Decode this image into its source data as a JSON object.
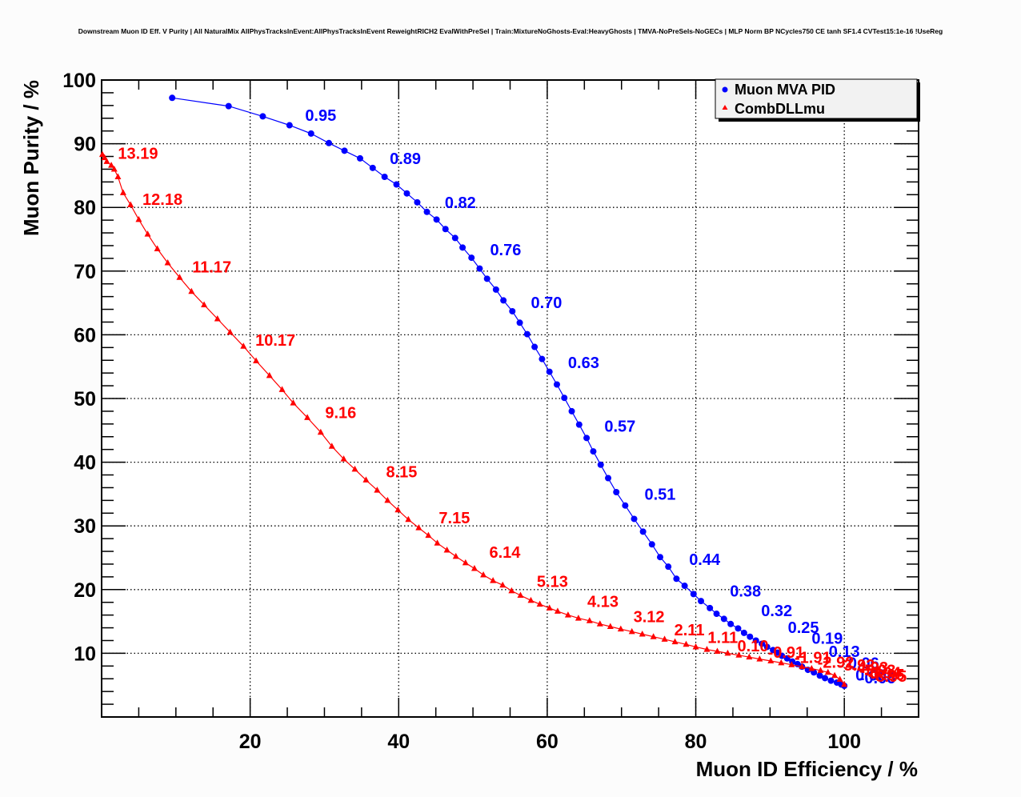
{
  "chart_data": {
    "type": "line",
    "title": "Downstream Muon ID Eff. V Purity | All NaturalMix AllPhysTracksInEvent:AllPhysTracksInEvent ReweightRICH2 EvalWithPreSel | Train:MixtureNoGhosts-Eval:HeavyGhosts | TMVA-NoPreSels-NoGECs | MLP Norm BP NCycles750 CE tanh SF1.4 CVTest15:1e-16 !UseReg",
    "xlabel": "Muon ID Efficiency / %",
    "ylabel": "Muon Purity / %",
    "xlim": [
      0,
      110
    ],
    "ylim": [
      0,
      100
    ],
    "xticks": [
      "20",
      "40",
      "60",
      "80",
      "100"
    ],
    "yticks": [
      "10",
      "20",
      "30",
      "40",
      "50",
      "60",
      "70",
      "80",
      "90",
      "100"
    ],
    "grid": true,
    "legend_position": "top-right",
    "series": [
      {
        "name": "Muon MVA PID",
        "color": "#0000ff",
        "marker": "circle",
        "x": [
          9.5,
          17.1,
          21.7,
          25.3,
          28.2,
          30.6,
          32.7,
          34.8,
          36.5,
          38.1,
          39.7,
          41.1,
          42.5,
          43.8,
          45.1,
          46.3,
          47.6,
          48.6,
          49.8,
          50.9,
          51.9,
          53.1,
          54.1,
          55.3,
          56.3,
          57.3,
          58.3,
          59.3,
          60.3,
          61.3,
          62.3,
          63.3,
          64.3,
          65.3,
          66.2,
          67.2,
          68.2,
          69.3,
          70.5,
          71.7,
          72.9,
          74.1,
          75.2,
          76.3,
          77.4,
          78.5,
          79.7,
          80.7,
          81.9,
          82.8,
          83.8,
          84.7,
          85.7,
          86.5,
          87.3,
          88.1,
          88.9,
          89.6,
          90.4,
          91.0,
          91.6,
          92.3,
          93.0,
          93.7,
          94.3,
          95.1,
          95.9,
          96.7,
          97.4,
          98.2,
          99.0,
          99.6,
          100.0
        ],
        "y": [
          97.2,
          95.9,
          94.3,
          92.9,
          91.6,
          90.1,
          88.9,
          87.7,
          86.2,
          84.8,
          83.6,
          82.2,
          80.8,
          79.3,
          78.1,
          76.6,
          75.2,
          73.7,
          72.1,
          70.4,
          68.8,
          67.1,
          65.4,
          63.7,
          61.9,
          60.1,
          58.1,
          56.2,
          54.2,
          52.2,
          50.1,
          48.0,
          45.9,
          43.8,
          41.7,
          39.6,
          37.5,
          35.3,
          33.2,
          31.1,
          29.1,
          27.1,
          25.1,
          23.6,
          21.7,
          20.6,
          19.3,
          18.2,
          17.1,
          16.2,
          15.4,
          14.6,
          13.9,
          13.2,
          12.6,
          12.0,
          11.5,
          11.0,
          10.5,
          10.1,
          9.6,
          9.2,
          8.7,
          8.3,
          7.9,
          7.4,
          7.0,
          6.5,
          6.1,
          5.7,
          5.4,
          5.1,
          4.9
        ],
        "labels": [
          {
            "text": "0.95",
            "x": 27.4,
            "y": 93.6
          },
          {
            "text": "0.89",
            "x": 38.8,
            "y": 86.8
          },
          {
            "text": "0.82",
            "x": 46.2,
            "y": 79.9
          },
          {
            "text": "0.76",
            "x": 52.3,
            "y": 72.5
          },
          {
            "text": "0.70",
            "x": 57.8,
            "y": 64.2
          },
          {
            "text": "0.63",
            "x": 62.8,
            "y": 54.8
          },
          {
            "text": "0.57",
            "x": 67.7,
            "y": 44.8
          },
          {
            "text": "0.51",
            "x": 73.1,
            "y": 34.1
          },
          {
            "text": "0.44",
            "x": 79.1,
            "y": 23.9
          },
          {
            "text": "0.38",
            "x": 84.6,
            "y": 18.9
          },
          {
            "text": "0.32",
            "x": 88.8,
            "y": 15.8
          },
          {
            "text": "0.25",
            "x": 92.4,
            "y": 13.2
          },
          {
            "text": "0.19",
            "x": 95.6,
            "y": 11.5
          },
          {
            "text": "0.13",
            "x": 97.9,
            "y": 9.4
          },
          {
            "text": "0.06",
            "x": 100.5,
            "y": 7.6
          },
          {
            "text": "0.00",
            "x": 101.5,
            "y": 5.7
          },
          {
            "text": "-0.06",
            "x": 102.0,
            "y": 5.3
          }
        ]
      },
      {
        "name": "CombDLLmu",
        "color": "#ff0000",
        "marker": "triangle",
        "x": [
          0.1,
          0.4,
          0.7,
          1.3,
          1.7,
          2.2,
          2.9,
          3.9,
          5.0,
          6.2,
          7.5,
          8.9,
          10.5,
          12.1,
          13.8,
          15.6,
          17.3,
          19.1,
          20.8,
          22.6,
          24.3,
          25.8,
          27.7,
          29.5,
          31.0,
          32.6,
          34.1,
          35.6,
          37.1,
          38.5,
          39.9,
          41.3,
          42.7,
          44.0,
          45.2,
          46.5,
          47.7,
          49.0,
          50.2,
          51.4,
          52.7,
          54.0,
          55.2,
          56.4,
          57.8,
          59.0,
          60.3,
          61.4,
          62.8,
          64.2,
          65.7,
          67.1,
          68.5,
          69.9,
          71.4,
          72.8,
          74.3,
          75.8,
          77.2,
          78.7,
          80.0,
          81.5,
          82.9,
          84.3,
          85.8,
          87.2,
          88.6,
          90.1,
          91.5,
          92.9,
          94.3,
          95.6,
          96.8,
          97.8,
          98.7,
          99.4,
          100.0
        ],
        "y": [
          88.3,
          87.8,
          87.2,
          86.6,
          86.0,
          84.8,
          82.3,
          80.4,
          78.1,
          75.8,
          73.5,
          71.3,
          69.0,
          66.8,
          64.7,
          62.5,
          60.4,
          58.2,
          55.9,
          53.6,
          51.4,
          49.3,
          47.0,
          44.7,
          42.5,
          40.5,
          38.9,
          37.2,
          35.6,
          34.0,
          32.5,
          31.0,
          29.7,
          28.5,
          27.3,
          26.2,
          25.2,
          24.2,
          23.3,
          22.3,
          21.4,
          20.7,
          19.8,
          19.1,
          18.3,
          17.7,
          17.1,
          16.6,
          16.0,
          15.5,
          15.1,
          14.6,
          14.2,
          13.8,
          13.4,
          13.0,
          12.6,
          12.2,
          11.8,
          11.4,
          11.0,
          10.6,
          10.3,
          10.0,
          9.7,
          9.4,
          9.1,
          8.8,
          8.5,
          8.2,
          7.9,
          7.6,
          7.3,
          7.0,
          6.5,
          5.9,
          5.1
        ],
        "labels": [
          {
            "text": "13.19",
            "x": 2.2,
            "y": 87.6
          },
          {
            "text": "12.18",
            "x": 5.5,
            "y": 80.4
          },
          {
            "text": "11.17",
            "x": 12.2,
            "y": 69.8
          },
          {
            "text": "10.17",
            "x": 20.7,
            "y": 58.3
          },
          {
            "text": "9.16",
            "x": 30.1,
            "y": 46.9
          },
          {
            "text": "8.15",
            "x": 38.3,
            "y": 37.6
          },
          {
            "text": "7.15",
            "x": 45.4,
            "y": 30.4
          },
          {
            "text": "6.14",
            "x": 52.2,
            "y": 25.0
          },
          {
            "text": "5.13",
            "x": 58.6,
            "y": 20.4
          },
          {
            "text": "4.13",
            "x": 65.4,
            "y": 17.3
          },
          {
            "text": "3.12",
            "x": 71.6,
            "y": 14.9
          },
          {
            "text": "2.11",
            "x": 77.1,
            "y": 12.8
          },
          {
            "text": "1.11",
            "x": 81.6,
            "y": 11.6
          },
          {
            "text": "0.10",
            "x": 85.6,
            "y": 10.3
          },
          {
            "text": "-0.91",
            "x": 89.7,
            "y": 9.3
          },
          {
            "text": "-1.91",
            "x": 93.3,
            "y": 8.5
          },
          {
            "text": "-2.92",
            "x": 96.4,
            "y": 7.7
          },
          {
            "text": "-3.92",
            "x": 99.2,
            "y": 7.3
          },
          {
            "text": "-4.93",
            "x": 101.0,
            "y": 6.9
          },
          {
            "text": "-5.93",
            "x": 102.0,
            "y": 6.5
          },
          {
            "text": "-6.94",
            "x": 102.7,
            "y": 6.1
          },
          {
            "text": "-7.95",
            "x": 103.2,
            "y": 5.8
          },
          {
            "text": "-8.95",
            "x": 103.5,
            "y": 5.5
          }
        ]
      }
    ]
  }
}
